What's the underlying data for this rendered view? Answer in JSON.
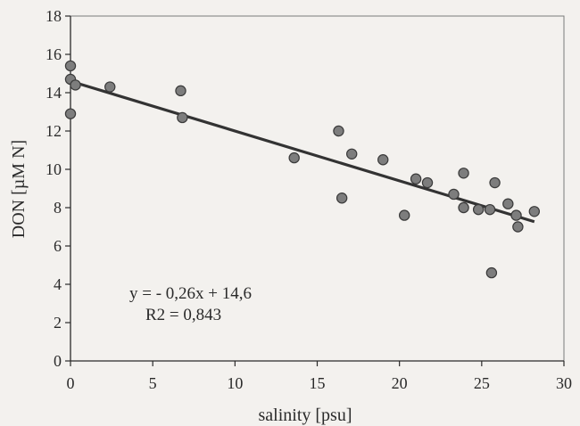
{
  "chart_data": {
    "type": "scatter",
    "title": "",
    "xlabel": "salinity [psu]",
    "ylabel": "DON [µM N]",
    "xlim": [
      0,
      30
    ],
    "ylim": [
      0,
      18
    ],
    "x_ticks": [
      0,
      5,
      10,
      15,
      20,
      25,
      30
    ],
    "y_ticks": [
      0,
      2,
      4,
      6,
      8,
      10,
      12,
      14,
      16,
      18
    ],
    "grid": false,
    "legend": "none",
    "points": [
      {
        "x": 0.0,
        "y": 15.4
      },
      {
        "x": 0.0,
        "y": 14.7
      },
      {
        "x": 0.0,
        "y": 12.9
      },
      {
        "x": 0.3,
        "y": 14.4
      },
      {
        "x": 2.4,
        "y": 14.3
      },
      {
        "x": 6.7,
        "y": 14.1
      },
      {
        "x": 6.8,
        "y": 12.7
      },
      {
        "x": 13.6,
        "y": 10.6
      },
      {
        "x": 16.3,
        "y": 12.0
      },
      {
        "x": 16.5,
        "y": 8.5
      },
      {
        "x": 17.1,
        "y": 10.8
      },
      {
        "x": 19.0,
        "y": 10.5
      },
      {
        "x": 20.3,
        "y": 7.6
      },
      {
        "x": 21.0,
        "y": 9.5
      },
      {
        "x": 21.7,
        "y": 9.3
      },
      {
        "x": 23.3,
        "y": 8.7
      },
      {
        "x": 23.9,
        "y": 9.8
      },
      {
        "x": 23.9,
        "y": 8.0
      },
      {
        "x": 24.8,
        "y": 7.9
      },
      {
        "x": 25.5,
        "y": 7.9
      },
      {
        "x": 25.6,
        "y": 4.6
      },
      {
        "x": 25.8,
        "y": 9.3
      },
      {
        "x": 26.6,
        "y": 8.2
      },
      {
        "x": 27.1,
        "y": 7.6
      },
      {
        "x": 27.2,
        "y": 7.0
      },
      {
        "x": 28.2,
        "y": 7.8
      }
    ],
    "fit_line": {
      "slope": -0.26,
      "intercept": 14.6,
      "x_range": [
        0,
        28.2
      ]
    },
    "annotations": [
      "y = - 0,26x + 14,6",
      "R2 = 0,843"
    ]
  },
  "colors": {
    "point_fill": "#7d7d7d",
    "line": "#333333",
    "text": "#2a2a2a"
  }
}
